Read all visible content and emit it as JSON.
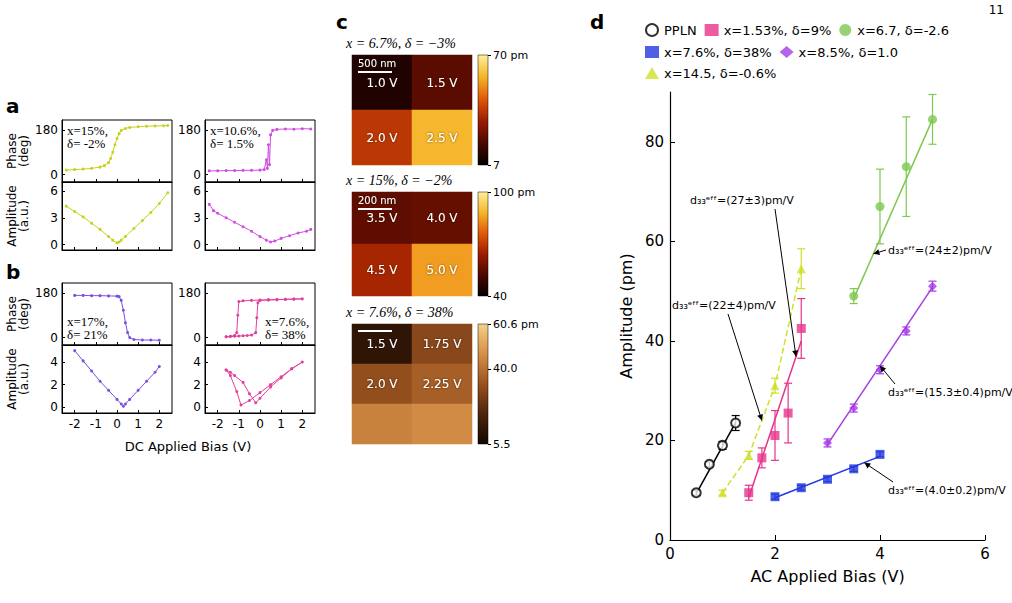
{
  "page_number": "11",
  "chart_data": [
    {
      "panel": "a",
      "type": "line",
      "ylabel": "Phase (deg)",
      "annotation": "x=15%, δ= -2%",
      "color": "#c6d31c",
      "marker": "dot",
      "x": [
        -2.4,
        -2.0,
        -1.6,
        -1.2,
        -0.8,
        -0.6,
        -0.4,
        -0.3,
        -0.2,
        -0.1,
        0,
        0.1,
        0.2,
        0.4,
        0.6,
        1.0,
        1.4,
        1.8,
        2.2,
        2.4
      ],
      "values": [
        18,
        20,
        22,
        25,
        30,
        36,
        48,
        65,
        90,
        120,
        145,
        165,
        178,
        186,
        190,
        193,
        195,
        196,
        197,
        198
      ],
      "xlim": [
        -2.6,
        2.6
      ],
      "xticks": [
        -2,
        -1,
        0,
        1,
        2
      ],
      "ylim": [
        -30,
        220
      ],
      "yticks": [
        0,
        180
      ],
      "tick_labels": "y"
    },
    {
      "type": "line",
      "ylabel": "Amplitude (a.u.)",
      "color": "#c6d31c",
      "marker": "dot",
      "x": [
        -2.4,
        -2.0,
        -1.6,
        -1.2,
        -0.8,
        -0.4,
        -0.2,
        0,
        0.1,
        0.2,
        0.4,
        0.8,
        1.2,
        1.6,
        2.0,
        2.4
      ],
      "values": [
        4.3,
        3.7,
        3.1,
        2.4,
        1.7,
        0.9,
        0.5,
        0.2,
        0.3,
        0.5,
        0.9,
        1.8,
        2.7,
        3.6,
        4.6,
        5.8
      ],
      "xlim": [
        -2.6,
        2.6
      ],
      "xticks": [
        -2,
        -1,
        0,
        1,
        2
      ],
      "ylim": [
        -0.6,
        7
      ],
      "yticks": [
        0,
        3,
        6
      ],
      "tick_labels": "y"
    },
    {
      "type": "line",
      "annotation": "x=10.6%, δ= 1.5%",
      "color": "#d04ee0",
      "marker": "dot",
      "x": [
        -2.4,
        -2.0,
        -1.6,
        -1.2,
        -0.8,
        -0.4,
        0,
        0.2,
        0.3,
        0.35,
        0.4,
        0.45,
        0.5,
        0.6,
        0.8,
        1.2,
        1.6,
        2.0,
        2.4
      ],
      "values": [
        15,
        15,
        16,
        16,
        17,
        17,
        18,
        20,
        60,
        25,
        120,
        40,
        160,
        178,
        182,
        184,
        183,
        185,
        184
      ],
      "xlim": [
        -2.6,
        2.6
      ],
      "xticks": [
        -2,
        -1,
        0,
        1,
        2
      ],
      "ylim": [
        -30,
        220
      ],
      "yticks": [
        0,
        180
      ],
      "tick_labels": "y"
    },
    {
      "type": "line",
      "color": "#d04ee0",
      "marker": "dot",
      "x": [
        -2.4,
        -2.2,
        -2.0,
        -1.6,
        -1.2,
        -0.8,
        -0.4,
        0,
        0.3,
        0.5,
        0.7,
        1.0,
        1.4,
        1.8,
        2.2,
        2.4
      ],
      "values": [
        4.5,
        3.8,
        3.5,
        3.0,
        2.5,
        2.0,
        1.5,
        0.9,
        0.5,
        0.3,
        0.4,
        0.7,
        1.0,
        1.3,
        1.5,
        1.7
      ],
      "xlim": [
        -2.6,
        2.6
      ],
      "xticks": [
        -2,
        -1,
        0,
        1,
        2
      ],
      "ylim": [
        -0.6,
        7
      ],
      "yticks": [
        0,
        3,
        6
      ],
      "tick_labels": "y"
    },
    {
      "panel": "b",
      "type": "line",
      "ylabel": "Phase (deg)",
      "annotation": "x=17%, δ= 21%",
      "color": "#7a50e0",
      "marker": "dot",
      "x": [
        -2.0,
        -1.6,
        -1.2,
        -0.8,
        -0.4,
        0,
        0.1,
        0.2,
        0.3,
        0.4,
        0.5,
        0.6,
        0.8,
        1.2,
        1.6,
        2.0
      ],
      "values": [
        170,
        170,
        169,
        169,
        168,
        167,
        165,
        150,
        110,
        60,
        20,
        0,
        -8,
        -10,
        -10,
        -11
      ],
      "xlim": [
        -2.6,
        2.6
      ],
      "xticks": [
        -2,
        -1,
        0,
        1,
        2
      ],
      "ylim": [
        -30,
        220
      ],
      "yticks": [
        0,
        180
      ],
      "tick_labels": "y"
    },
    {
      "type": "line",
      "ylabel": "Amplitude (a.u.)",
      "xlabel": "DC Applied Bias (V)",
      "color": "#7a50e0",
      "marker": "dot",
      "x": [
        -2.0,
        -1.6,
        -1.2,
        -0.8,
        -0.4,
        0,
        0.2,
        0.3,
        0.4,
        0.6,
        1.0,
        1.4,
        1.8,
        2.0
      ],
      "values": [
        5.0,
        4.1,
        3.2,
        2.3,
        1.5,
        0.7,
        0.3,
        0.1,
        0.3,
        0.7,
        1.5,
        2.3,
        3.1,
        3.6
      ],
      "xlim": [
        -2.6,
        2.6
      ],
      "xticks": [
        -2,
        -1,
        0,
        1,
        2
      ],
      "ylim": [
        -0.5,
        5.5
      ],
      "yticks": [
        0,
        2,
        4
      ]
    },
    {
      "type": "line",
      "annotation": "x=7.6%, δ= 38%",
      "color": "#e0409e",
      "marker": "dot",
      "x": [
        -1.6,
        -1.4,
        -1.2,
        -1.0,
        -0.8,
        -0.6,
        -0.4,
        -0.2,
        -0.15,
        -0.1,
        0,
        0.4,
        0.8,
        1.2,
        1.6,
        2.0,
        1.6,
        1.2,
        0.8,
        0.4,
        0,
        -0.4,
        -0.8,
        -1.0,
        -1.05,
        -1.1,
        -1.2,
        -1.4,
        -1.6
      ],
      "values": [
        3,
        4,
        5,
        6,
        7,
        8,
        10,
        20,
        80,
        140,
        150,
        152,
        153,
        154,
        155,
        156,
        155,
        154,
        153,
        152,
        151,
        150,
        148,
        145,
        90,
        20,
        8,
        5,
        3
      ],
      "xlim": [
        -2.6,
        2.6
      ],
      "xticks": [
        -2,
        -1,
        0,
        1,
        2
      ],
      "ylim": [
        -30,
        220
      ],
      "yticks": [
        0,
        180
      ],
      "tick_labels": "y"
    },
    {
      "type": "line",
      "color": "#e0409e",
      "marker": "dot",
      "x": [
        -1.6,
        -1.4,
        -1.2,
        -0.8,
        -0.5,
        -0.2,
        0,
        0.5,
        1.0,
        1.5,
        2.0,
        1.5,
        1.0,
        0.5,
        0,
        -0.5,
        -0.9,
        -1.1,
        -1.4,
        -1.6
      ],
      "values": [
        3.3,
        3.1,
        2.8,
        2.2,
        1.2,
        0.4,
        0.8,
        1.8,
        2.6,
        3.4,
        4.0,
        3.4,
        2.7,
        2.0,
        1.3,
        0.6,
        0.2,
        1.4,
        2.8,
        3.3
      ],
      "xlim": [
        -2.6,
        2.6
      ],
      "xticks": [
        -2,
        -1,
        0,
        1,
        2
      ],
      "ylim": [
        -0.5,
        5.5
      ],
      "yticks": [
        0,
        2,
        4
      ]
    },
    {
      "panel": "c",
      "type": "heatmap",
      "title": "x = 6.7%, δ = −3%",
      "scale_bar": "500 nm",
      "cells": [
        {
          "row": 0,
          "col": 0,
          "label": "1.0 V",
          "value": 12
        },
        {
          "row": 0,
          "col": 1,
          "label": "1.5 V",
          "value": 22
        },
        {
          "row": 1,
          "col": 0,
          "label": "2.0 V",
          "value": 38
        },
        {
          "row": 1,
          "col": 1,
          "label": "2.5 V",
          "value": 58
        }
      ],
      "colorbar": {
        "range": [
          7,
          70
        ],
        "ticks": [
          {
            "value": 70,
            "label": "70 pm"
          },
          7
        ]
      }
    },
    {
      "type": "heatmap",
      "title": "x = 15%, δ = −2%",
      "scale_bar": "200 nm",
      "cells": [
        {
          "row": 0,
          "col": 0,
          "label": "3.5 V",
          "value": 55
        },
        {
          "row": 0,
          "col": 1,
          "label": "4.0 V",
          "value": 56
        },
        {
          "row": 1,
          "col": 0,
          "label": "4.5 V",
          "value": 66
        },
        {
          "row": 1,
          "col": 1,
          "label": "5.0 V",
          "value": 85
        }
      ],
      "colorbar": {
        "range": [
          40,
          100
        ],
        "ticks": [
          {
            "value": 100,
            "label": "100 pm"
          },
          40
        ]
      }
    },
    {
      "type": "heatmap",
      "title": "x = 7.6%, δ = 38%",
      "cells": [
        {
          "row": 0,
          "col": 0,
          "label": "1.5 V",
          "value": 12
        },
        {
          "row": 0,
          "col": 1,
          "label": "1.75 V",
          "value": 30
        },
        {
          "row": 1,
          "col": 0,
          "label": "2.0 V",
          "value": 32
        },
        {
          "row": 1,
          "col": 1,
          "label": "2.25 V",
          "value": 36
        },
        {
          "row": 2,
          "col": 0,
          "label": null,
          "value": 44
        },
        {
          "row": 2,
          "col": 1,
          "label": null,
          "value": 46
        }
      ],
      "colorbar": {
        "range": [
          5.5,
          60.6
        ],
        "ticks": [
          {
            "value": 60.6,
            "label": "60.6 pm"
          },
          {
            "value": 40,
            "label": "40.0"
          },
          5.5
        ]
      }
    },
    {
      "panel": "d",
      "type": "scatter",
      "xlabel": "AC Applied Bias (V)",
      "ylabel": "Amplitude (pm)",
      "xlim": [
        0,
        6
      ],
      "xticks": [
        0,
        2,
        4,
        6
      ],
      "ylim": [
        0,
        90
      ],
      "yticks": [
        0,
        20,
        40,
        60,
        80
      ],
      "grid": false,
      "legend": "top",
      "series": [
        {
          "name": "PPLN",
          "color": "#000000",
          "marker": "open_circle",
          "line_style": "solid",
          "x": [
            0.5,
            0.75,
            1.0,
            1.25
          ],
          "values": [
            9.5,
            15.2,
            19,
            23.5
          ],
          "errors": [
            0.5,
            0.5,
            0.8,
            1.5
          ],
          "fit": {
            "x": [
              0.5,
              1.25
            ],
            "values": [
              9.3,
              23.6
            ]
          }
        },
        {
          "name": "x=1.53%, δ=9%",
          "color": "#e6338c",
          "marker": "square",
          "line_style": "solid",
          "x": [
            1.5,
            1.75,
            2.0,
            2.25,
            2.5
          ],
          "values": [
            9.5,
            16.5,
            21,
            25.5,
            42.5
          ],
          "errors": [
            1.5,
            2,
            5,
            6,
            6
          ],
          "fit": {
            "x": [
              1.5,
              2.5
            ],
            "values": [
              8.5,
              40
            ]
          },
          "annotation": "d₃₃ᵉᶠᶠ=(27±3)pm/V"
        },
        {
          "name": "x=6.7, δ=-2.6",
          "color": "#7ec850",
          "marker": "circle",
          "line_style": "solid",
          "x": [
            3.5,
            4.0,
            4.5,
            5.0
          ],
          "values": [
            49,
            67,
            75,
            84.5
          ],
          "errors": [
            1.5,
            7.5,
            10,
            5
          ],
          "fit": {
            "x": [
              3.5,
              5.0
            ],
            "values": [
              48.5,
              84.5
            ]
          },
          "annotation": "d₃₃ᵉᶠᶠ=(24±2)pm/V"
        },
        {
          "name": "x=7.6%, δ=38%",
          "color": "#2338e0",
          "marker": "square",
          "line_style": "solid",
          "x": [
            2.0,
            2.5,
            3.0,
            3.5,
            4.0
          ],
          "values": [
            8.7,
            10.5,
            12.2,
            14.3,
            17.2
          ],
          "errors": [
            0.5,
            0.5,
            0.5,
            0.5,
            0.5
          ],
          "fit": {
            "x": [
              2.0,
              4.0
            ],
            "values": [
              8.5,
              16.8
            ]
          },
          "annotation": "d₃₃ᵉᶠᶠ=(4.0±0.2)pm/V"
        },
        {
          "name": "x=8.5%, δ=1.0",
          "color": "#a43ce6",
          "marker": "diamond",
          "line_style": "solid",
          "x": [
            3.0,
            3.5,
            4.0,
            4.5,
            5.0
          ],
          "values": [
            19.5,
            26.5,
            34.2,
            42,
            51
          ],
          "errors": [
            0.8,
            0.8,
            0.8,
            0.8,
            1
          ],
          "fit": {
            "x": [
              3.0,
              5.0
            ],
            "values": [
              19.2,
              50.8
            ]
          },
          "annotation": "d₃₃ᵉᶠᶠ=(15.3±0.4)pm/V"
        },
        {
          "name": "x=14.5, δ=-0.6%",
          "color": "#cfe02a",
          "marker": "triangle",
          "line_style": "dashed",
          "x": [
            1.0,
            1.5,
            2.0,
            2.5
          ],
          "values": [
            9.5,
            17,
            31,
            54.5
          ],
          "errors": [
            0.5,
            0.8,
            1.5,
            4
          ],
          "annotation": "d₃₃ᵉᶠᶠ=(22±4)pm/V"
        }
      ]
    }
  ]
}
